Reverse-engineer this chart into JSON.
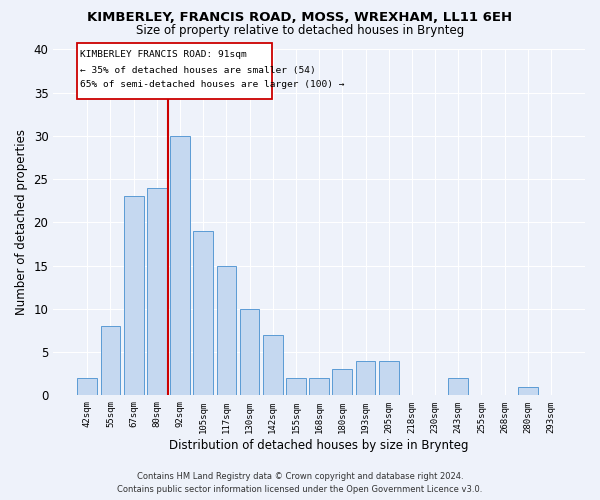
{
  "title": "KIMBERLEY, FRANCIS ROAD, MOSS, WREXHAM, LL11 6EH",
  "subtitle": "Size of property relative to detached houses in Brynteg",
  "xlabel": "Distribution of detached houses by size in Brynteg",
  "ylabel": "Number of detached properties",
  "categories": [
    "42sqm",
    "55sqm",
    "67sqm",
    "80sqm",
    "92sqm",
    "105sqm",
    "117sqm",
    "130sqm",
    "142sqm",
    "155sqm",
    "168sqm",
    "180sqm",
    "193sqm",
    "205sqm",
    "218sqm",
    "230sqm",
    "243sqm",
    "255sqm",
    "268sqm",
    "280sqm",
    "293sqm"
  ],
  "values": [
    2,
    8,
    23,
    24,
    30,
    19,
    15,
    10,
    7,
    2,
    2,
    3,
    4,
    4,
    0,
    0,
    2,
    0,
    0,
    1,
    0
  ],
  "bar_color": "#c5d8f0",
  "bar_edge_color": "#5b9bd5",
  "annotation_title": "KIMBERLEY FRANCIS ROAD: 91sqm",
  "annotation_line1": "← 35% of detached houses are smaller (54)",
  "annotation_line2": "65% of semi-detached houses are larger (100) →",
  "vline_color": "#cc0000",
  "vline_x": 3.5,
  "ylim": [
    0,
    40
  ],
  "yticks": [
    0,
    5,
    10,
    15,
    20,
    25,
    30,
    35,
    40
  ],
  "footer1": "Contains HM Land Registry data © Crown copyright and database right 2024.",
  "footer2": "Contains public sector information licensed under the Open Government Licence v3.0.",
  "background_color": "#eef2fa",
  "grid_color": "#ffffff"
}
